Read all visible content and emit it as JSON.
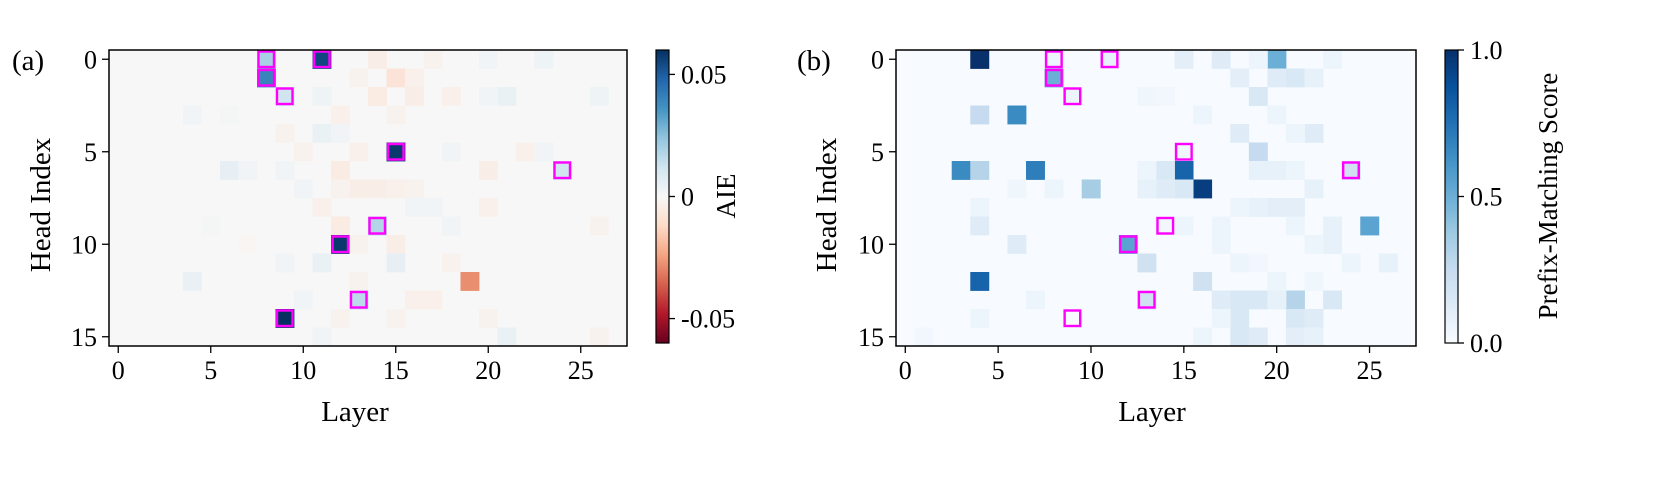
{
  "chart_data": [
    {
      "panel": "(a)",
      "type": "heatmap",
      "xlabel": "Layer",
      "ylabel": "Head Index",
      "x_ticks": [
        "0",
        "5",
        "10",
        "15",
        "20",
        "25"
      ],
      "y_ticks": [
        "0",
        "5",
        "10",
        "15"
      ],
      "n_layers": 28,
      "n_heads": 16,
      "colormap": "RdBu",
      "vmin": -0.06,
      "vmax": 0.06,
      "colorbar": {
        "label": "AIE",
        "ticks": [
          "0.05",
          "0",
          "-0.05"
        ],
        "tick_values": [
          0.05,
          0,
          -0.05
        ]
      },
      "cells": [
        [
          11,
          0,
          0.055
        ],
        [
          8,
          0,
          0.02
        ],
        [
          14,
          0,
          -0.004
        ],
        [
          17,
          0,
          -0.002
        ],
        [
          20,
          0,
          0.002
        ],
        [
          23,
          0,
          0.003
        ],
        [
          8,
          1,
          0.04
        ],
        [
          15,
          1,
          -0.008
        ],
        [
          16,
          1,
          -0.003
        ],
        [
          13,
          1,
          -0.002
        ],
        [
          9,
          2,
          0.012
        ],
        [
          11,
          2,
          0.003
        ],
        [
          14,
          2,
          -0.005
        ],
        [
          16,
          2,
          -0.004
        ],
        [
          18,
          2,
          -0.003
        ],
        [
          21,
          2,
          0.004
        ],
        [
          20,
          2,
          0.002
        ],
        [
          26,
          2,
          0.003
        ],
        [
          4,
          3,
          0.002
        ],
        [
          12,
          3,
          -0.003
        ],
        [
          15,
          3,
          -0.002
        ],
        [
          6,
          3,
          0.001
        ],
        [
          11,
          4,
          0.004
        ],
        [
          12,
          4,
          0.002
        ],
        [
          9,
          4,
          -0.002
        ],
        [
          15,
          5,
          0.058
        ],
        [
          10,
          5,
          -0.002
        ],
        [
          13,
          5,
          -0.003
        ],
        [
          18,
          5,
          0.002
        ],
        [
          22,
          5,
          -0.003
        ],
        [
          23,
          5,
          0.002
        ],
        [
          6,
          6,
          0.005
        ],
        [
          7,
          6,
          0.002
        ],
        [
          12,
          6,
          -0.005
        ],
        [
          20,
          6,
          -0.004
        ],
        [
          24,
          6,
          0.012
        ],
        [
          9,
          6,
          0.002
        ],
        [
          10,
          7,
          0.002
        ],
        [
          13,
          7,
          -0.004
        ],
        [
          14,
          7,
          -0.004
        ],
        [
          15,
          7,
          -0.003
        ],
        [
          16,
          7,
          -0.002
        ],
        [
          12,
          7,
          -0.002
        ],
        [
          11,
          8,
          -0.003
        ],
        [
          17,
          8,
          0.002
        ],
        [
          20,
          8,
          -0.003
        ],
        [
          16,
          8,
          0.002
        ],
        [
          12,
          9,
          -0.005
        ],
        [
          14,
          9,
          0.018
        ],
        [
          18,
          9,
          0.002
        ],
        [
          5,
          9,
          0.001
        ],
        [
          26,
          9,
          -0.002
        ],
        [
          12,
          10,
          0.058
        ],
        [
          15,
          10,
          -0.004
        ],
        [
          13,
          10,
          -0.002
        ],
        [
          7,
          10,
          -0.001
        ],
        [
          11,
          11,
          0.004
        ],
        [
          15,
          11,
          0.005
        ],
        [
          9,
          11,
          0.002
        ],
        [
          18,
          11,
          -0.002
        ],
        [
          4,
          12,
          0.004
        ],
        [
          19,
          12,
          -0.028
        ],
        [
          13,
          12,
          -0.002
        ],
        [
          13,
          13,
          0.016
        ],
        [
          16,
          13,
          -0.003
        ],
        [
          17,
          13,
          -0.003
        ],
        [
          10,
          13,
          0.002
        ],
        [
          9,
          14,
          0.06
        ],
        [
          15,
          14,
          -0.002
        ],
        [
          12,
          14,
          -0.002
        ],
        [
          20,
          14,
          -0.002
        ],
        [
          11,
          15,
          0.002
        ],
        [
          21,
          15,
          0.004
        ],
        [
          26,
          15,
          -0.002
        ]
      ],
      "highlighted": [
        [
          8,
          0
        ],
        [
          11,
          0
        ],
        [
          8,
          1
        ],
        [
          9,
          2
        ],
        [
          15,
          5
        ],
        [
          24,
          6
        ],
        [
          14,
          9
        ],
        [
          12,
          10
        ],
        [
          13,
          13
        ],
        [
          9,
          14
        ]
      ]
    },
    {
      "panel": "(b)",
      "type": "heatmap",
      "xlabel": "Layer",
      "ylabel": "Head Index",
      "x_ticks": [
        "0",
        "5",
        "10",
        "15",
        "20",
        "25"
      ],
      "y_ticks": [
        "0",
        "5",
        "10",
        "15"
      ],
      "n_layers": 28,
      "n_heads": 16,
      "colormap": "Blues",
      "vmin": 0.0,
      "vmax": 1.0,
      "colorbar": {
        "label": "Prefix-Matching Score",
        "ticks": [
          "1.0",
          "0.5",
          "0.0"
        ],
        "tick_values": [
          1.0,
          0.5,
          0.0
        ]
      },
      "cells": [
        [
          4,
          0,
          1.0
        ],
        [
          8,
          0,
          0.05
        ],
        [
          11,
          0,
          0.08
        ],
        [
          15,
          0,
          0.1
        ],
        [
          17,
          0,
          0.12
        ],
        [
          20,
          0,
          0.5
        ],
        [
          23,
          0,
          0.05
        ],
        [
          19,
          0,
          0.05
        ],
        [
          8,
          1,
          0.5
        ],
        [
          18,
          1,
          0.1
        ],
        [
          20,
          1,
          0.12
        ],
        [
          21,
          1,
          0.15
        ],
        [
          22,
          1,
          0.08
        ],
        [
          9,
          2,
          0.05
        ],
        [
          19,
          2,
          0.15
        ],
        [
          13,
          2,
          0.04
        ],
        [
          14,
          2,
          0.03
        ],
        [
          4,
          3,
          0.25
        ],
        [
          6,
          3,
          0.65
        ],
        [
          16,
          3,
          0.05
        ],
        [
          20,
          3,
          0.05
        ],
        [
          18,
          4,
          0.12
        ],
        [
          22,
          4,
          0.12
        ],
        [
          21,
          4,
          0.05
        ],
        [
          19,
          5,
          0.25
        ],
        [
          15,
          5,
          0.04
        ],
        [
          3,
          6,
          0.65
        ],
        [
          4,
          6,
          0.3
        ],
        [
          7,
          6,
          0.7
        ],
        [
          15,
          6,
          0.8
        ],
        [
          14,
          6,
          0.15
        ],
        [
          19,
          6,
          0.08
        ],
        [
          20,
          6,
          0.08
        ],
        [
          21,
          6,
          0.05
        ],
        [
          24,
          6,
          0.2
        ],
        [
          13,
          6,
          0.05
        ],
        [
          10,
          7,
          0.35
        ],
        [
          16,
          7,
          0.95
        ],
        [
          15,
          7,
          0.15
        ],
        [
          14,
          7,
          0.12
        ],
        [
          8,
          7,
          0.05
        ],
        [
          13,
          7,
          0.08
        ],
        [
          6,
          7,
          0.04
        ],
        [
          22,
          7,
          0.08
        ],
        [
          4,
          8,
          0.05
        ],
        [
          20,
          8,
          0.1
        ],
        [
          21,
          8,
          0.1
        ],
        [
          19,
          8,
          0.08
        ],
        [
          18,
          8,
          0.05
        ],
        [
          4,
          9,
          0.12
        ],
        [
          25,
          9,
          0.55
        ],
        [
          23,
          9,
          0.08
        ],
        [
          21,
          9,
          0.05
        ],
        [
          17,
          9,
          0.05
        ],
        [
          15,
          9,
          0.05
        ],
        [
          14,
          9,
          0.03
        ],
        [
          6,
          10,
          0.12
        ],
        [
          12,
          10,
          0.55
        ],
        [
          17,
          10,
          0.05
        ],
        [
          23,
          10,
          0.08
        ],
        [
          22,
          10,
          0.05
        ],
        [
          13,
          11,
          0.2
        ],
        [
          18,
          11,
          0.05
        ],
        [
          24,
          11,
          0.05
        ],
        [
          26,
          11,
          0.08
        ],
        [
          19,
          11,
          0.03
        ],
        [
          4,
          12,
          0.8
        ],
        [
          16,
          12,
          0.2
        ],
        [
          20,
          12,
          0.05
        ],
        [
          22,
          12,
          0.04
        ],
        [
          13,
          13,
          0.2
        ],
        [
          17,
          13,
          0.12
        ],
        [
          18,
          13,
          0.15
        ],
        [
          19,
          13,
          0.15
        ],
        [
          21,
          13,
          0.3
        ],
        [
          23,
          13,
          0.15
        ],
        [
          7,
          13,
          0.05
        ],
        [
          20,
          13,
          0.08
        ],
        [
          4,
          14,
          0.05
        ],
        [
          18,
          14,
          0.15
        ],
        [
          21,
          14,
          0.15
        ],
        [
          22,
          14,
          0.12
        ],
        [
          17,
          14,
          0.05
        ],
        [
          18,
          15,
          0.15
        ],
        [
          19,
          15,
          0.12
        ],
        [
          21,
          15,
          0.1
        ],
        [
          22,
          15,
          0.08
        ],
        [
          16,
          15,
          0.05
        ],
        [
          1,
          15,
          0.03
        ]
      ],
      "highlighted": [
        [
          8,
          0
        ],
        [
          11,
          0
        ],
        [
          8,
          1
        ],
        [
          9,
          2
        ],
        [
          15,
          5
        ],
        [
          24,
          6
        ],
        [
          14,
          9
        ],
        [
          12,
          10
        ],
        [
          13,
          13
        ],
        [
          9,
          14
        ]
      ]
    }
  ]
}
